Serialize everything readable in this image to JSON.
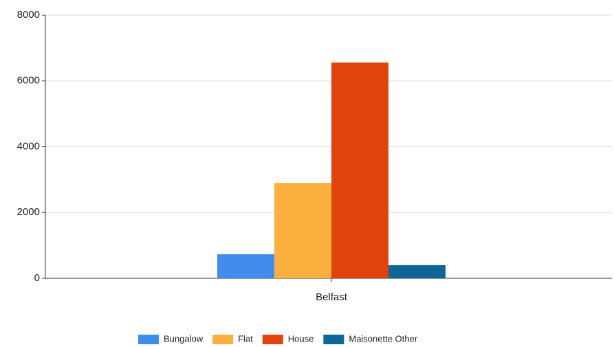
{
  "chart_data": {
    "type": "bar",
    "categories": [
      "Belfast"
    ],
    "series": [
      {
        "name": "Bungalow",
        "color": "#418ded",
        "values": [
          730
        ]
      },
      {
        "name": "Flat",
        "color": "#fbb040",
        "values": [
          2900
        ]
      },
      {
        "name": "House",
        "color": "#e0440c",
        "values": [
          6560
        ]
      },
      {
        "name": "Maisonette Other",
        "color": "#0f6595",
        "values": [
          400
        ]
      }
    ],
    "ylim": [
      0,
      8000
    ],
    "yticks": [
      0,
      2000,
      4000,
      6000,
      8000
    ],
    "grid": true
  }
}
